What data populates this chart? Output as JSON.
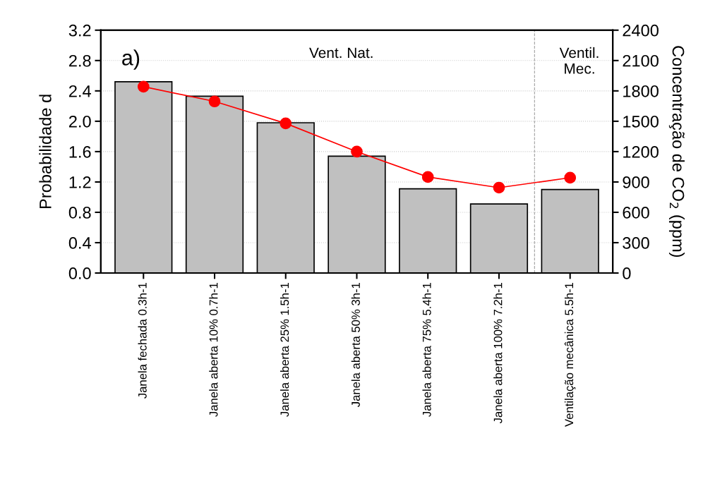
{
  "chart_data": {
    "type": "bar",
    "categories": [
      "Janela fechada 0.3h-1",
      "Janela aberta 10% 0.7h-1",
      "Janela aberta 25% 1.5h-1",
      "Janela aberta 50% 3h-1",
      "Janela aberta 75% 5.4h-1",
      "Janela aberta 100% 7.2h-1",
      "Ventilação mecânica 5.5h-1"
    ],
    "series": [
      {
        "color": "#c0c0c0",
        "values": [
          2.52,
          2.33,
          1.98,
          1.54,
          1.11,
          0.91,
          1.1
        ]
      },
      {
        "type": "line",
        "axis": "y2",
        "color": "#ff0000",
        "marker": "circle",
        "values": [
          1842,
          1696,
          1479,
          1200,
          949,
          844,
          942
        ]
      }
    ],
    "ylabel": "Probabilidade d",
    "y2label": "Concentração de CO$_{2}$ (ppm)",
    "ylim": [
      0,
      3.2
    ],
    "yticks": [
      {
        "value": 0,
        "label": "0.0"
      },
      0.4,
      0.8,
      1.2,
      1.6,
      {
        "value": 2,
        "label": "2.0"
      },
      2.4,
      2.8,
      3.2
    ],
    "y2lim": [
      0,
      2400
    ],
    "y2ticks": [
      0,
      300,
      600,
      900,
      1200,
      1500,
      1800,
      2100,
      2400
    ],
    "grid": "y",
    "ref_lines": [
      {
        "axis": "x",
        "value": "Ventilação mecânica 5.5h-1",
        "color": "#a0a0a0",
        "line_style": "dashed"
      }
    ],
    "annotations": [
      "a)",
      "Vent. Nat.",
      "Ventil.\nMec."
    ]
  }
}
